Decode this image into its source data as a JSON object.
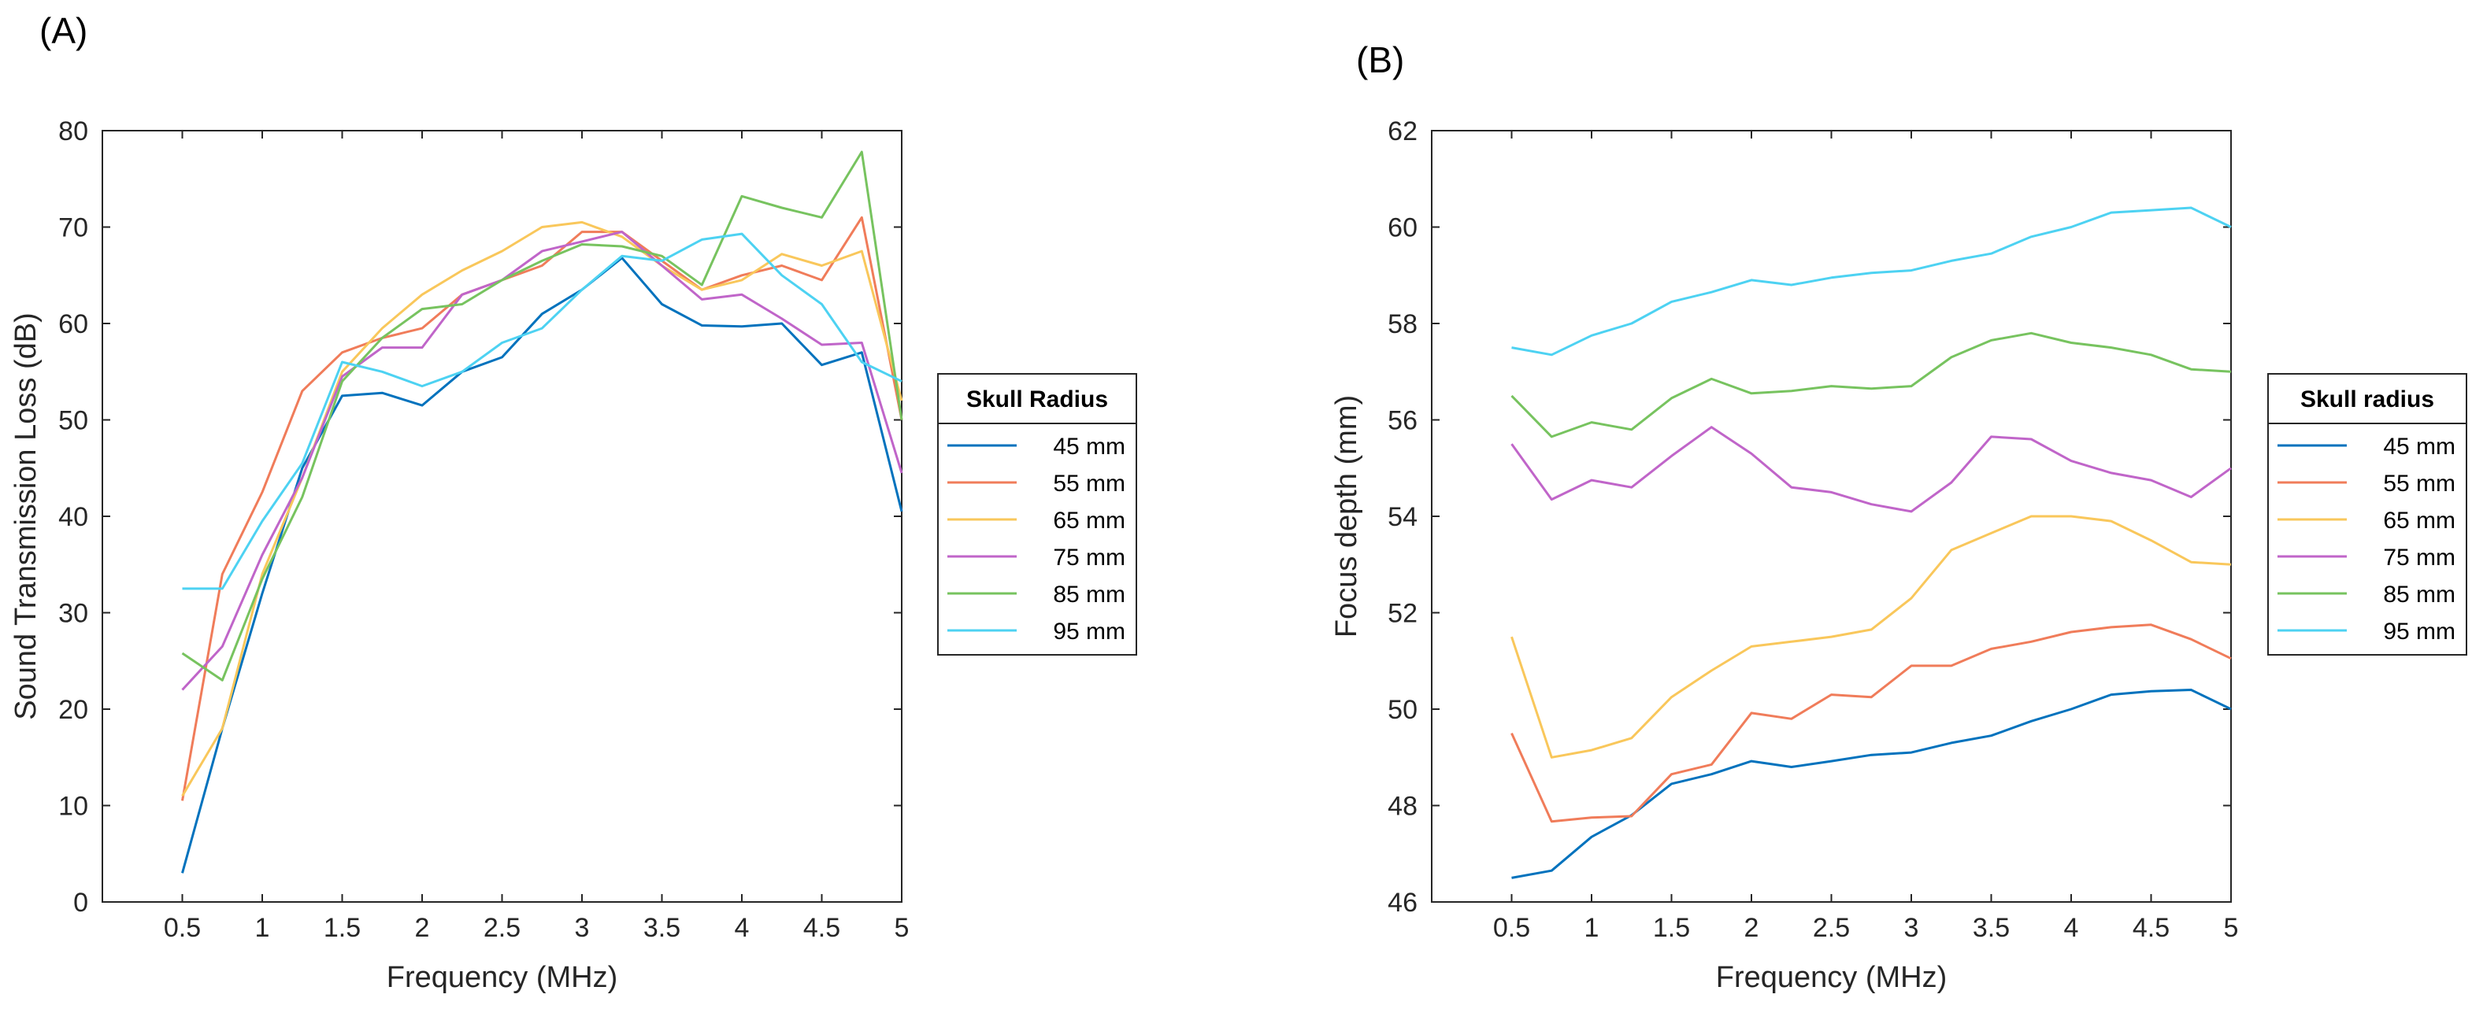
{
  "colors": {
    "axis": "#262626",
    "series": [
      "#0072BD",
      "#F07C5A",
      "#F9C75B",
      "#C065C9",
      "#77C35F",
      "#4DD2F2"
    ]
  },
  "chart_data": [
    {
      "panel_label": "(A)",
      "type": "line",
      "xlabel": "Frequency (MHz)",
      "ylabel": "Sound Transmission Loss (dB)",
      "xlim": [
        0,
        5
      ],
      "ylim": [
        0,
        80
      ],
      "x_ticks": [
        0.5,
        1,
        1.5,
        2,
        2.5,
        3,
        3.5,
        4,
        4.5,
        5
      ],
      "y_ticks": [
        0,
        10,
        20,
        30,
        40,
        50,
        60,
        70,
        80
      ],
      "x": [
        0.5,
        0.75,
        1,
        1.25,
        1.5,
        1.75,
        2,
        2.25,
        2.5,
        2.75,
        3,
        3.25,
        3.5,
        3.75,
        4,
        4.25,
        4.5,
        4.75,
        5
      ],
      "legend_title": "Skull Radius",
      "legend_position": "outside-right",
      "series": [
        {
          "name": "45 mm",
          "values": [
            3,
            18,
            32,
            45,
            52.5,
            52.8,
            51.5,
            55,
            56.5,
            61,
            63.5,
            66.8,
            62,
            59.8,
            59.7,
            60,
            55.7,
            57,
            40.5
          ]
        },
        {
          "name": "55 mm",
          "values": [
            10.5,
            34,
            42.5,
            53,
            57,
            58.5,
            59.5,
            63,
            64.5,
            66,
            69.5,
            69.5,
            66.5,
            63.5,
            65,
            66,
            64.5,
            71,
            50
          ]
        },
        {
          "name": "65 mm",
          "values": [
            11,
            18,
            34,
            44,
            55,
            59.5,
            63,
            65.5,
            67.5,
            70,
            70.5,
            69,
            66,
            63.5,
            64.5,
            67.2,
            66,
            67.5,
            52
          ]
        },
        {
          "name": "75 mm",
          "values": [
            22,
            26.5,
            36,
            44,
            54.5,
            57.5,
            57.5,
            63,
            64.5,
            67.5,
            68.5,
            69.5,
            66,
            62.5,
            63,
            60.5,
            57.8,
            58,
            44.5
          ]
        },
        {
          "name": "85 mm",
          "values": [
            25.8,
            23,
            33.5,
            42,
            54,
            58.5,
            61.5,
            62,
            64.5,
            66.5,
            68.2,
            68,
            67,
            64,
            73.2,
            72,
            71,
            77.8,
            50
          ]
        },
        {
          "name": "95 mm",
          "values": [
            32.5,
            32.5,
            39.5,
            45.5,
            56,
            55,
            53.5,
            55,
            58,
            59.5,
            63.5,
            67,
            66.5,
            68.7,
            69.3,
            65,
            62,
            56,
            54
          ]
        }
      ]
    },
    {
      "panel_label": "(B)",
      "type": "line",
      "xlabel": "Frequency (MHz)",
      "ylabel": "Focus depth (mm)",
      "xlim": [
        0,
        5
      ],
      "ylim": [
        46,
        62
      ],
      "x_ticks": [
        0.5,
        1,
        1.5,
        2,
        2.5,
        3,
        3.5,
        4,
        4.5,
        5
      ],
      "y_ticks": [
        46,
        48,
        50,
        52,
        54,
        56,
        58,
        60,
        62
      ],
      "x": [
        0.5,
        0.75,
        1,
        1.25,
        1.5,
        1.75,
        2,
        2.25,
        2.5,
        2.75,
        3,
        3.25,
        3.5,
        3.75,
        4,
        4.25,
        4.5,
        4.75,
        5
      ],
      "legend_title": "Skull radius",
      "legend_position": "outside-right",
      "series": [
        {
          "name": "45 mm",
          "values": [
            46.5,
            46.65,
            47.35,
            47.8,
            48.45,
            48.65,
            48.92,
            48.8,
            48.92,
            49.05,
            49.1,
            49.3,
            49.45,
            49.75,
            50.0,
            50.3,
            50.37,
            50.4,
            50.0
          ]
        },
        {
          "name": "55 mm",
          "values": [
            49.5,
            47.67,
            47.75,
            47.78,
            48.65,
            48.85,
            49.92,
            49.8,
            50.3,
            50.25,
            50.9,
            50.9,
            51.25,
            51.4,
            51.6,
            51.7,
            51.75,
            51.45,
            51.05
          ]
        },
        {
          "name": "65 mm",
          "values": [
            51.5,
            49.0,
            49.15,
            49.4,
            50.25,
            50.8,
            51.3,
            51.4,
            51.5,
            51.65,
            52.3,
            53.3,
            53.65,
            54.0,
            54.0,
            53.9,
            53.5,
            53.05,
            53.0
          ]
        },
        {
          "name": "75 mm",
          "values": [
            55.5,
            54.35,
            54.75,
            54.6,
            55.25,
            55.85,
            55.3,
            54.6,
            54.5,
            54.25,
            54.1,
            54.7,
            55.65,
            55.6,
            55.15,
            54.9,
            54.75,
            54.4,
            55.0
          ]
        },
        {
          "name": "85 mm",
          "values": [
            56.5,
            55.65,
            55.95,
            55.8,
            56.45,
            56.85,
            56.55,
            56.6,
            56.7,
            56.65,
            56.7,
            57.3,
            57.65,
            57.8,
            57.6,
            57.5,
            57.35,
            57.05,
            57.0
          ]
        },
        {
          "name": "95 mm",
          "values": [
            57.5,
            57.35,
            57.75,
            58.0,
            58.45,
            58.65,
            58.9,
            58.8,
            58.95,
            59.05,
            59.1,
            59.3,
            59.45,
            59.8,
            60.0,
            60.3,
            60.35,
            60.4,
            60.0
          ]
        }
      ]
    }
  ]
}
